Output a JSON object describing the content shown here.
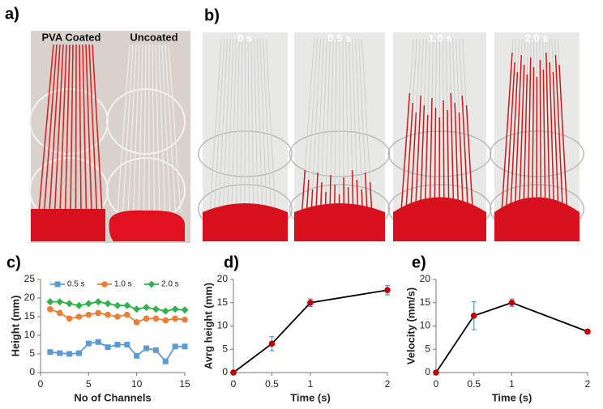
{
  "panels": {
    "a": "a)",
    "b": "b)",
    "c": "c)",
    "d": "d)",
    "e": "e)"
  },
  "photo_labels": [
    "PVA Coated",
    "Uncoated",
    "0 s",
    "0.5 s",
    "1.0 s",
    "2.0 s"
  ],
  "chart_data": [
    {
      "type": "line",
      "xlabel": "No of Channels",
      "ylabel": "Height (mm)",
      "x": [
        1,
        2,
        3,
        4,
        5,
        6,
        7,
        8,
        9,
        10,
        11,
        12,
        13,
        14,
        15
      ],
      "xlim": [
        0,
        15
      ],
      "xticks": [
        0,
        5,
        10,
        15
      ],
      "ylim": [
        0,
        25
      ],
      "yticks": [
        0,
        5,
        10,
        15,
        20,
        25
      ],
      "legend": "top",
      "series": [
        {
          "name": "0.5 s",
          "color": "#5b9bd5",
          "marker": "square",
          "values": [
            5.5,
            5.2,
            5,
            5.2,
            7.8,
            8.2,
            6.8,
            7.5,
            7.5,
            4.5,
            6.5,
            6,
            3,
            7,
            7
          ]
        },
        {
          "name": "1.0 s",
          "color": "#ed7d31",
          "marker": "circle",
          "values": [
            17,
            16,
            14.5,
            15,
            15.5,
            16,
            15.5,
            15,
            15.5,
            13.5,
            14.5,
            14.5,
            14,
            14.5,
            14.2
          ]
        },
        {
          "name": "2.0 s",
          "color": "#2eb24a",
          "marker": "diamond",
          "values": [
            19,
            19,
            18.5,
            18,
            18.5,
            19,
            18.5,
            18,
            18,
            17,
            17.5,
            17,
            16.5,
            17,
            16.8
          ]
        }
      ]
    },
    {
      "type": "line",
      "xlabel": "Time (s)",
      "ylabel": "Avrg height (mm)",
      "x": [
        0,
        0.5,
        1,
        2
      ],
      "xlim": [
        0,
        2
      ],
      "xticks": [
        0,
        0.5,
        1,
        2
      ],
      "ylim": [
        0,
        20
      ],
      "yticks": [
        0,
        5,
        10,
        15,
        20
      ],
      "series": [
        {
          "color": "#000000",
          "marker_color": "#c00000",
          "error_color": "#5b9bd5",
          "marker": "circle",
          "values": [
            0,
            6.2,
            15,
            17.7
          ],
          "errors": [
            0,
            1.5,
            0.8,
            1.0
          ]
        }
      ]
    },
    {
      "type": "line",
      "xlabel": "Time (s)",
      "ylabel": "Velocity (mm/s)",
      "x": [
        0,
        0.5,
        1,
        2
      ],
      "xlim": [
        0,
        2
      ],
      "xticks": [
        0,
        0.5,
        1,
        2
      ],
      "ylim": [
        0,
        20
      ],
      "yticks": [
        0,
        5,
        10,
        15,
        20
      ],
      "series": [
        {
          "color": "#000000",
          "marker_color": "#c00000",
          "error_color": "#5b9bd5",
          "marker": "circle",
          "values": [
            0,
            12.2,
            15,
            8.8
          ],
          "errors": [
            0,
            3,
            0.8,
            0.4
          ]
        }
      ]
    }
  ]
}
